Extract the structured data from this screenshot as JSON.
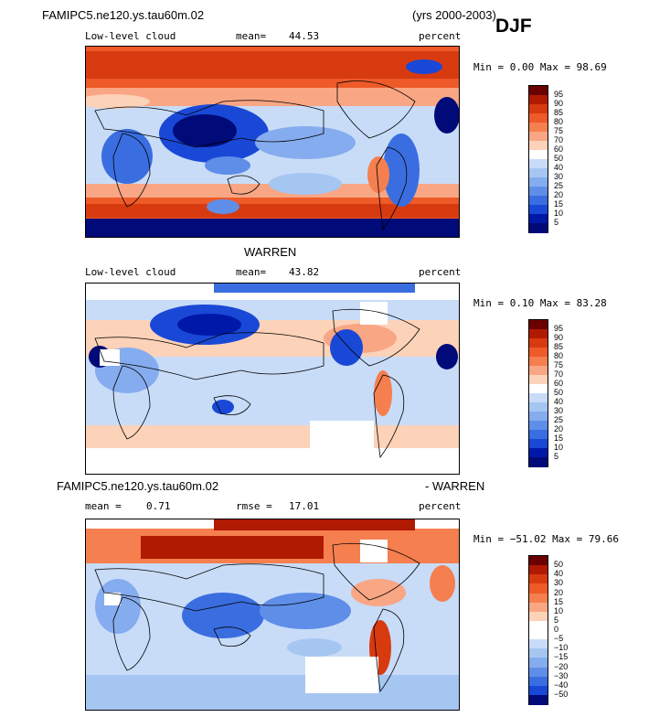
{
  "header": {
    "case_name": "FAMIPC5.ne120.ys.tau60m.02",
    "years": "(yrs 2000-2003)",
    "season": "DJF"
  },
  "panels": [
    {
      "title": "",
      "variable": "Low-level cloud",
      "stat_label": "mean=",
      "stat_value": "44.53",
      "units": "percent",
      "minmax": "Min =   0.00 Max =  98.69",
      "colorbar": {
        "labels": [
          "95",
          "90",
          "85",
          "80",
          "75",
          "70",
          "60",
          "50",
          "40",
          "30",
          "25",
          "20",
          "15",
          "10",
          "5"
        ]
      }
    },
    {
      "title": "WARREN",
      "variable": "Low-level cloud",
      "stat_label": "mean=",
      "stat_value": "43.82",
      "units": "percent",
      "minmax": "Min =   0.10 Max =  83.28",
      "colorbar": {
        "labels": [
          "95",
          "90",
          "85",
          "80",
          "75",
          "70",
          "60",
          "50",
          "40",
          "30",
          "25",
          "20",
          "15",
          "10",
          "5"
        ]
      }
    },
    {
      "title_left": "FAMIPC5.ne120.ys.tau60m.02",
      "title_right": "- WARREN",
      "mean_label": "mean =",
      "mean_value": "0.71",
      "rmse_label": "rmse =",
      "rmse_value": "17.01",
      "units": "percent",
      "minmax": "Min = −51.02 Max =  79.66",
      "colorbar": {
        "labels": [
          "50",
          "40",
          "30",
          "20",
          "15",
          "10",
          "5",
          "0",
          "−5",
          "−10",
          "−15",
          "−20",
          "−30",
          "−40",
          "−50"
        ]
      }
    }
  ],
  "colors": {
    "abs_scale": [
      "#6b0000",
      "#b01a00",
      "#d83a10",
      "#ee5a28",
      "#f57f4e",
      "#f9a684",
      "#fcd2b8",
      "#ffffff",
      "#c8dcf8",
      "#a6c6f2",
      "#85acee",
      "#5f8ee8",
      "#3a6ee0",
      "#1a48d6",
      "#0018a8",
      "#000a78"
    ],
    "diff_scale": [
      "#6b0000",
      "#b01a00",
      "#d83a10",
      "#ee5a28",
      "#f57f4e",
      "#f9a684",
      "#fcd2b8",
      "#ffffff",
      "#ffffff",
      "#c8dcf8",
      "#a6c6f2",
      "#85acee",
      "#5f8ee8",
      "#3a6ee0",
      "#1a48d6",
      "#000a78"
    ]
  }
}
